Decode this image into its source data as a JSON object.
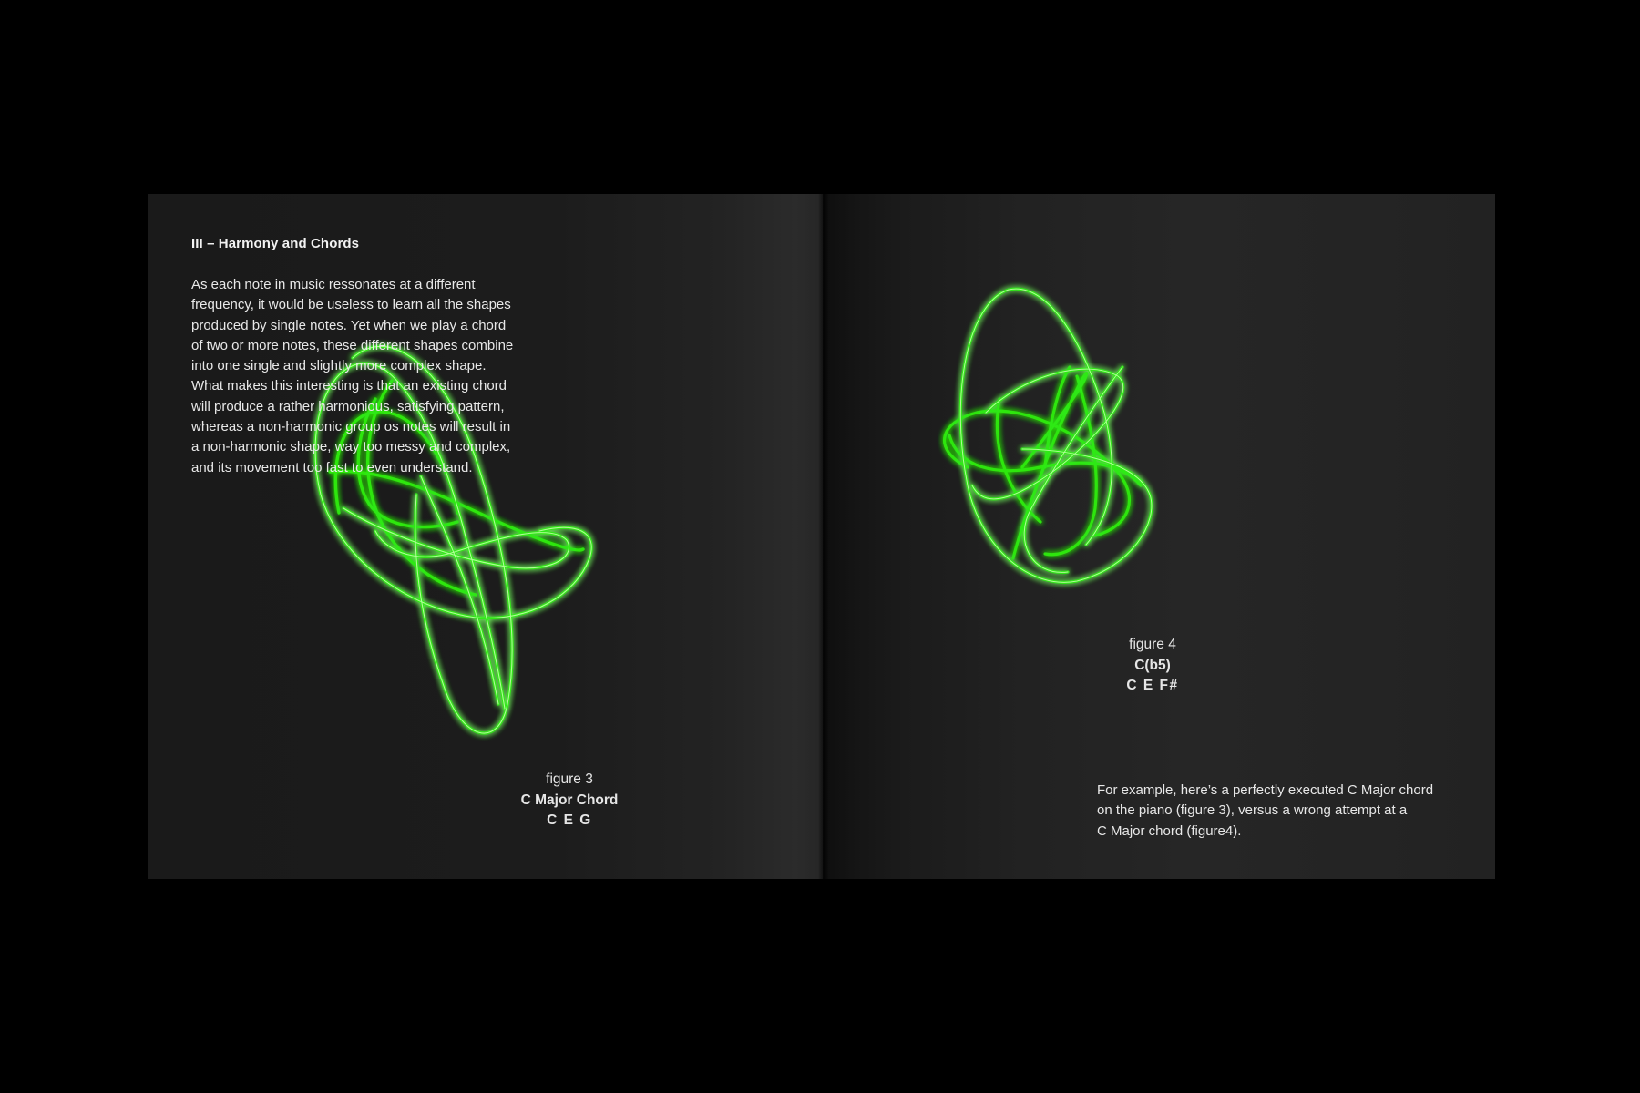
{
  "spread": {
    "left_page": {
      "heading": "III – Harmony and Chords",
      "paragraph_lines": [
        "As each note in music ressonates at a different",
        "frequency, it would be useless to learn all the shapes",
        "produced by single notes. Yet when we play a chord",
        "of two or more notes, these different shapes combine",
        "into one single and slightly more complex shape.",
        "What makes this interesting is that an existing chord",
        "will produce a rather harmonious, satisfying pattern,",
        "whereas  a non-harmonic group os notes will result in",
        "a non-harmonic shape, way too messy and complex,",
        "and its movement too fast to even understand."
      ],
      "figure": {
        "label": "figure 3",
        "chord_name": "C Major Chord",
        "notes": "C E G"
      }
    },
    "right_page": {
      "figure": {
        "label": "figure 4",
        "chord_name": "C(b5)",
        "notes": "C E F#"
      },
      "note_lines": [
        "For example, here’s a perfectly executed C Major chord",
        "on the piano (figure 3), versus a wrong attempt at a",
        "C Major chord (figure4)."
      ]
    }
  },
  "colors": {
    "background": "#000000",
    "page": "#1e1e1e",
    "trace_glow": "#39ff14",
    "trace_core": "#b6ff9a",
    "text": "#e8e8e8"
  }
}
